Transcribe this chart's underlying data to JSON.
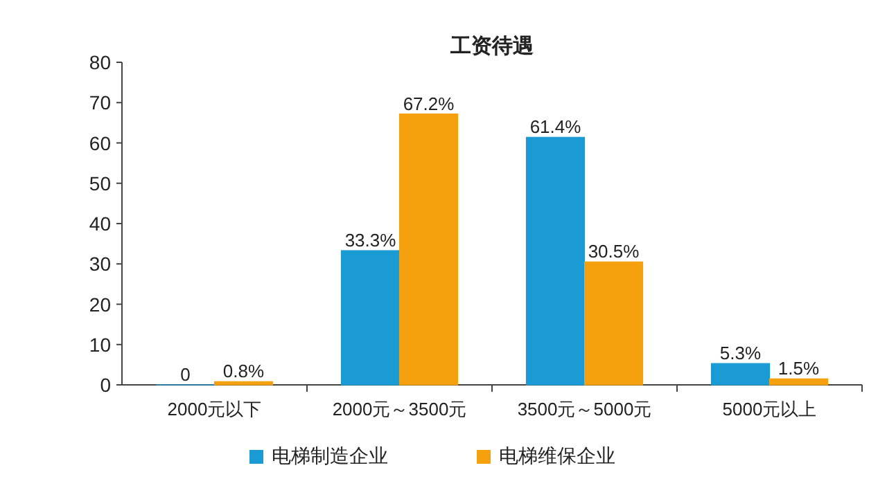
{
  "chart_data": {
    "type": "bar",
    "title": "工资待遇",
    "categories": [
      "2000元以下",
      "2000元～3500元",
      "3500元～5000元",
      "5000元以上"
    ],
    "series": [
      {
        "name": "电梯制造企业",
        "color": "#1b9bd4",
        "values": [
          0,
          33.3,
          61.4,
          5.3
        ],
        "value_labels": [
          "0",
          "33.3%",
          "61.4%",
          "5.3%"
        ]
      },
      {
        "name": "电梯维保企业",
        "color": "#f5a00f",
        "values": [
          0.8,
          67.2,
          30.5,
          1.5
        ],
        "value_labels": [
          "0.8%",
          "67.2%",
          "30.5%",
          "1.5%"
        ]
      }
    ],
    "ylim": [
      0,
      80
    ],
    "yticks": [
      0,
      10,
      20,
      30,
      40,
      50,
      60,
      70,
      80
    ],
    "legend": "bottom"
  }
}
